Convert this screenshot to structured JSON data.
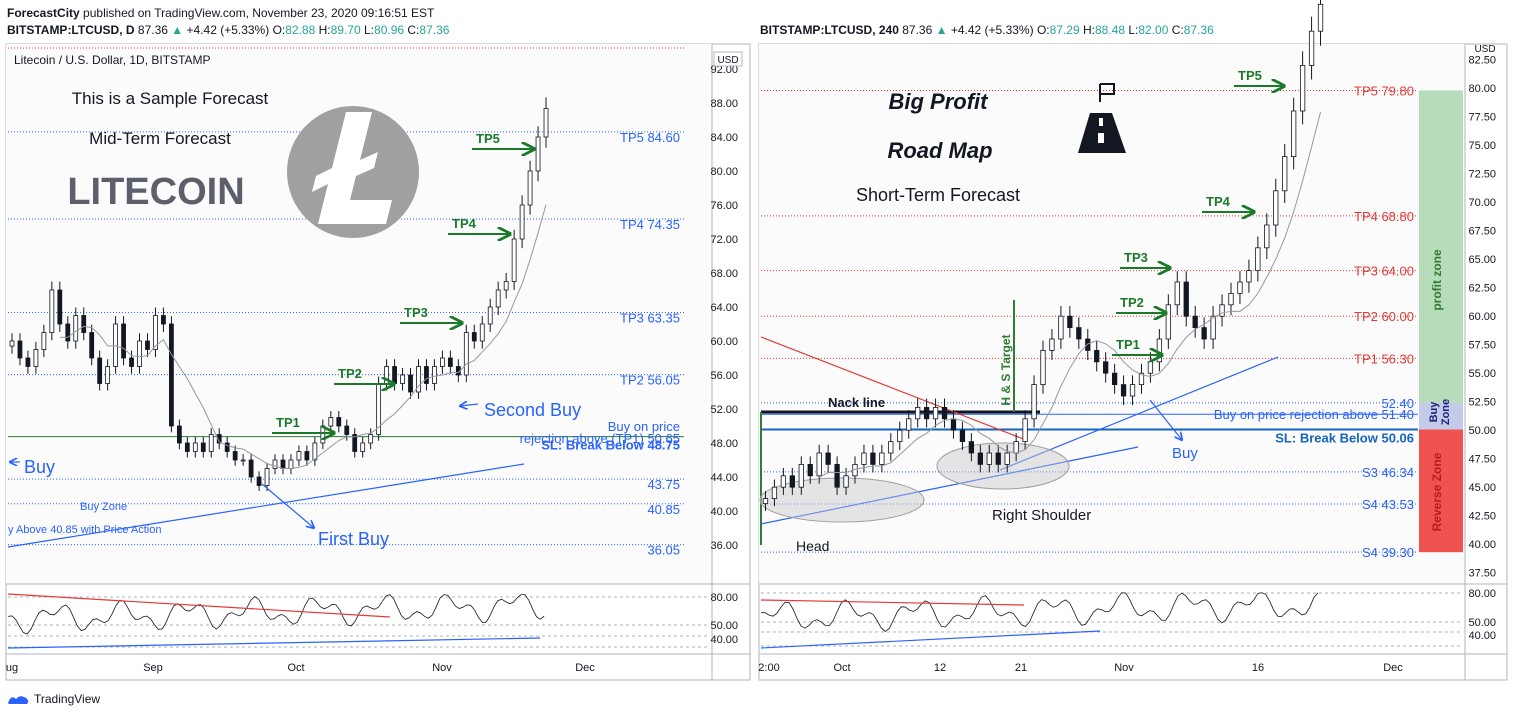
{
  "header": {
    "author": "ForecastCity",
    "published": "published on TradingView.com, November 23, 2020 09:16:51 EST"
  },
  "brand": "TradingView",
  "colors": {
    "tp_blue": "#2962ff",
    "arrow_green": "#1b7a2a",
    "sl_red": "#e53935",
    "grid": "#e0e3eb",
    "candle": "#131722"
  },
  "left": {
    "symbol_line": {
      "symbol": "BITSTAMP:LTCUSD, D",
      "price": "87.36",
      "change": "+4.42 (+5.33%)",
      "o": "82.88",
      "h": "89.70",
      "l": "80.96",
      "c": "87.36"
    },
    "pane_title": "Litecoin / U.S. Dollar, 1D, BITSTAMP",
    "currency": "USD",
    "notes": {
      "sample": "This is a Sample Forecast",
      "term": "Mid-Term Forecast",
      "coin": "LITECOIN"
    },
    "y_ticks": [
      "92.00",
      "88.00",
      "84.00",
      "80.00",
      "76.00",
      "72.00",
      "68.00",
      "64.00",
      "60.00",
      "56.00",
      "52.00",
      "48.00",
      "44.00",
      "40.00",
      "36.00"
    ],
    "levels": [
      {
        "label": "TP5 84.60",
        "value": 84.6
      },
      {
        "label": "TP4 74.35",
        "value": 74.35
      },
      {
        "label": "TP3 63.35",
        "value": 63.35
      },
      {
        "label": "TP2 56.05",
        "value": 56.05
      },
      {
        "label": "43.75",
        "value": 43.75
      },
      {
        "label": "40.85",
        "value": 40.85
      },
      {
        "label": "36.05",
        "value": 36.05
      }
    ],
    "buy_note_1": "Buy on price",
    "buy_note_2": "rejection above (TP1) 50.65",
    "sl": "SL: Break Below 48.75",
    "tp_labels": [
      "TP1",
      "TP2",
      "TP3",
      "TP4",
      "TP5"
    ],
    "buy_zone": "Buy Zone",
    "above": "y Above  40.85 with Price Action",
    "first_buy": "First Buy",
    "second_buy": "Second Buy",
    "buy": "Buy",
    "x_labels": [
      "ug",
      "Sep",
      "Oct",
      "Nov",
      "Dec"
    ],
    "rsi_ticks": [
      "80.00",
      "50.00",
      "40.00"
    ]
  },
  "right": {
    "symbol_line": {
      "symbol": "BITSTAMP:LTCUSD, 240",
      "price": "87.36",
      "change": "+4.42 (+5.33%)",
      "o": "87.29",
      "h": "88.48",
      "l": "82.00",
      "c": "87.36"
    },
    "currency": "USD",
    "notes": {
      "big": "Big Profit",
      "road": "Road Map",
      "term": "Short-Term Forecast"
    },
    "y_ticks": [
      "82.50",
      "80.00",
      "77.50",
      "75.00",
      "72.50",
      "70.00",
      "67.50",
      "65.00",
      "62.50",
      "60.00",
      "57.50",
      "55.00",
      "52.50",
      "50.00",
      "47.50",
      "45.00",
      "42.50",
      "40.00",
      "37.50"
    ],
    "levels": [
      {
        "label": "TP5 79.80",
        "value": 79.8,
        "color": "red"
      },
      {
        "label": "TP4 68.80",
        "value": 68.8,
        "color": "red"
      },
      {
        "label": "TP3 64.00",
        "value": 64.0,
        "color": "red"
      },
      {
        "label": "TP2 60.00",
        "value": 60.0,
        "color": "red"
      },
      {
        "label": "TP1 56.30",
        "value": 56.3,
        "color": "red"
      },
      {
        "label": "52.40",
        "value": 52.4,
        "color": "blue"
      },
      {
        "label": "S3 46.34",
        "value": 46.34,
        "color": "blue"
      },
      {
        "label": "S4 43.53",
        "value": 43.53,
        "color": "blue"
      },
      {
        "label": "S4 39.30",
        "value": 39.3,
        "color": "blue"
      }
    ],
    "buy_note": "Buy on price rejection above 51.40",
    "sl": "SL: Break Below 50.06",
    "tp_labels": [
      "TP1",
      "TP2",
      "TP3",
      "TP4",
      "TP5"
    ],
    "neck": "Nack line",
    "hs_target": "H & S Target",
    "head": "Head",
    "right_shoulder": "Right Shoulder",
    "buy": "Buy",
    "zones": {
      "profit": "profit zone",
      "buy": "Buy Zone",
      "reverse": "Reverse Zone"
    },
    "x_labels": [
      "2:00",
      "Oct",
      "12",
      "21",
      "Nov",
      "16",
      "Dec"
    ],
    "rsi_ticks": [
      "80.00",
      "50.00",
      "40.00"
    ]
  },
  "chart_data": [
    {
      "type": "candlestick",
      "title": "Litecoin / U.S. Dollar, 1D, BITSTAMP",
      "ylim": [
        34,
        94
      ],
      "x_labels": [
        "Aug",
        "Sep",
        "Oct",
        "Nov",
        "Dec"
      ],
      "closes": [
        60,
        58,
        57,
        59,
        61,
        66,
        62,
        60,
        63,
        61,
        58,
        55,
        57,
        62,
        58,
        57,
        60,
        59,
        63,
        62,
        50,
        48,
        47,
        48,
        47,
        49,
        48,
        47,
        46,
        46,
        44,
        43,
        45,
        46,
        45,
        46,
        47,
        46,
        48,
        50,
        51,
        50,
        49,
        47,
        48,
        49,
        55,
        57,
        55,
        56,
        54,
        57,
        55,
        57,
        58,
        57,
        56,
        61,
        60,
        62,
        64,
        66,
        67,
        72,
        76,
        80,
        84,
        87.36
      ],
      "levels": [
        84.6,
        74.35,
        63.35,
        56.05,
        50.65,
        48.75,
        43.75,
        40.85,
        36.05
      ]
    },
    {
      "type": "candlestick",
      "title": "BITSTAMP:LTCUSD, 240",
      "ylim": [
        36.5,
        84
      ],
      "x_labels": [
        "2:00",
        "Oct",
        "12",
        "21",
        "Nov",
        "16",
        "Dec"
      ],
      "closes": [
        44,
        45,
        46,
        45,
        47,
        46,
        48,
        47,
        45,
        46,
        47,
        48,
        47,
        48,
        49,
        50,
        51,
        52,
        51,
        52,
        51,
        50,
        49,
        48,
        47,
        48,
        47,
        48,
        49,
        51,
        54,
        57,
        58,
        60,
        59,
        58,
        57,
        56,
        55,
        54,
        53,
        54,
        55,
        56,
        58,
        61,
        63,
        60,
        59,
        58,
        60,
        61,
        62,
        63,
        64,
        66,
        68,
        71,
        74,
        78,
        82,
        85,
        87.36
      ],
      "levels": [
        79.8,
        68.8,
        64.0,
        60.0,
        56.3,
        52.4,
        51.4,
        50.06,
        46.34,
        43.53,
        39.3
      ]
    }
  ]
}
